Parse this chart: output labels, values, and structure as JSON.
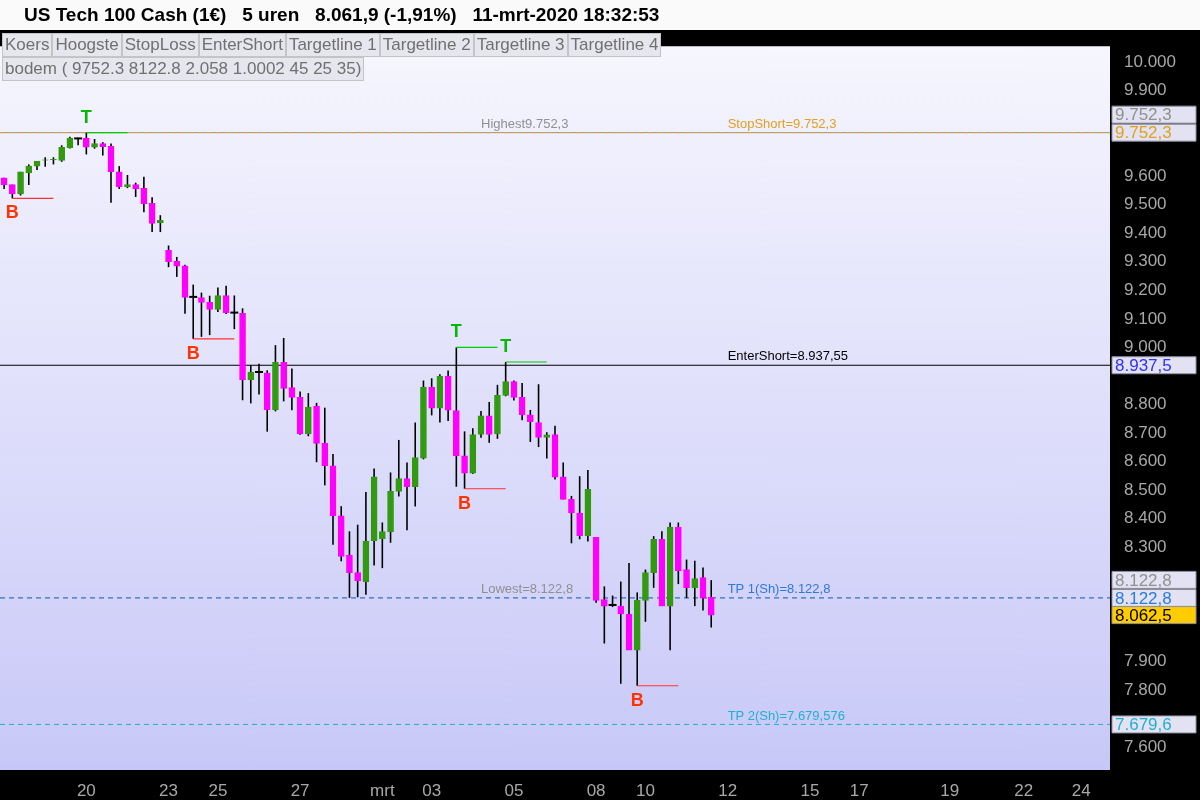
{
  "chart_data": {
    "type": "candlestick",
    "title": "US Tech 100 Cash (1€)   5 uren   8.061,9 (-1,91%)   11-mrt-2020 18:32:53",
    "categories": [
      null,
      null,
      null,
      null,
      null,
      null,
      null,
      null,
      null,
      null,
      "20",
      null,
      null,
      null,
      null,
      null,
      null,
      null,
      null,
      null,
      "23",
      null,
      null,
      null,
      null,
      null,
      "25",
      null,
      null,
      null,
      null,
      null,
      null,
      null,
      null,
      null,
      "27",
      null,
      null,
      null,
      null,
      null,
      null,
      null,
      null,
      null,
      "mrt",
      null,
      null,
      null,
      null,
      null,
      "03",
      null,
      null,
      null,
      null,
      null,
      null,
      null,
      null,
      null,
      "05",
      null,
      null,
      null,
      null,
      null,
      null,
      null,
      null,
      null,
      "08",
      null,
      null,
      null,
      null,
      null,
      "10",
      null,
      null,
      null,
      null,
      null,
      null,
      null,
      null,
      null,
      "12",
      null,
      null,
      null,
      null,
      null,
      null,
      null,
      null,
      null,
      "15",
      null,
      null,
      null,
      null,
      null,
      "17",
      null,
      null,
      null,
      null,
      null,
      null,
      null,
      null,
      null,
      null,
      "19",
      null,
      null,
      null,
      null,
      null,
      null,
      null,
      null,
      "22",
      null,
      null,
      null,
      null,
      null,
      null,
      "24",
      null,
      null,
      null
    ],
    "ohlc": [
      [
        9594,
        9594,
        9555,
        9569
      ],
      [
        9570,
        9570,
        9522,
        9538
      ],
      [
        9538,
        9615,
        9532,
        9615
      ],
      [
        9611,
        9641,
        9569,
        9635
      ],
      [
        9635,
        9653,
        9621,
        9653
      ],
      [
        9656,
        9666,
        9633,
        9657
      ],
      [
        9658,
        9666,
        9641,
        9659
      ],
      [
        9655,
        9708,
        9650,
        9701
      ],
      [
        9700,
        9738,
        9697,
        9733
      ],
      [
        9732,
        9734,
        9708,
        9732
      ],
      [
        9733,
        9752.3,
        9676,
        9701
      ],
      [
        9701,
        9730,
        9696,
        9714
      ],
      [
        9714,
        9719,
        9672,
        9703
      ],
      [
        9704,
        9714,
        9507,
        9615
      ],
      [
        9615,
        9635,
        9555,
        9563
      ],
      [
        9563,
        9604,
        9558,
        9570
      ],
      [
        9570,
        9577,
        9527,
        9555
      ],
      [
        9557,
        9598,
        9473,
        9503
      ],
      [
        9505,
        9526,
        9404,
        9434
      ],
      [
        9436,
        9463,
        9404,
        9445
      ],
      [
        9340,
        9357,
        9281,
        9300
      ],
      [
        9302,
        9317,
        9247,
        9285
      ],
      [
        9286,
        9290,
        9118,
        9175
      ],
      [
        9177,
        9220,
        9030,
        9177
      ],
      [
        9175,
        9192,
        9037,
        9158
      ],
      [
        9158,
        9181,
        9043,
        9133
      ],
      [
        9133,
        9210,
        9124,
        9182
      ],
      [
        9182,
        9216,
        9117,
        9122
      ],
      [
        9122,
        9182,
        9064,
        9122
      ],
      [
        9119,
        9137,
        8815,
        8886
      ],
      [
        8886,
        8938,
        8804,
        8914
      ],
      [
        8914,
        8943,
        8835,
        8914
      ],
      [
        8911,
        8920,
        8705,
        8781
      ],
      [
        8781,
        9008,
        8776,
        8948
      ],
      [
        8948,
        9033,
        8811,
        8856
      ],
      [
        8859,
        8926,
        8780,
        8825
      ],
      [
        8825,
        8846,
        8694,
        8697
      ],
      [
        8697,
        8840,
        8689,
        8791
      ],
      [
        8795,
        8806,
        8598,
        8664
      ],
      [
        8664,
        8789,
        8517,
        8585
      ],
      [
        8585,
        8627,
        8309,
        8410
      ],
      [
        8410,
        8444,
        8251,
        8268
      ],
      [
        8273,
        8356,
        8122.8,
        8211
      ],
      [
        8211,
        8379,
        8125,
        8182
      ],
      [
        8180,
        8494,
        8134,
        8322
      ],
      [
        8323,
        8576,
        8236,
        8547
      ],
      [
        8330,
        8387,
        8227,
        8355
      ],
      [
        8354,
        8562,
        8316,
        8496
      ],
      [
        8496,
        8676,
        8478,
        8541
      ],
      [
        8541,
        8597,
        8360,
        8512
      ],
      [
        8512,
        8737,
        8443,
        8614
      ],
      [
        8612,
        8884,
        8608,
        8861
      ],
      [
        8861,
        8892,
        8762,
        8787
      ],
      [
        8787,
        8906,
        8737,
        8899
      ],
      [
        8899,
        8919,
        8742,
        8780
      ],
      [
        8779,
        9000,
        8512,
        8620
      ],
      [
        8620,
        8706,
        8505,
        8560
      ],
      [
        8560,
        8717,
        8557,
        8695
      ],
      [
        8695,
        8777,
        8684,
        8760
      ],
      [
        8760,
        8809,
        8666,
        8695
      ],
      [
        8697,
        8869,
        8680,
        8832
      ],
      [
        8832,
        8949,
        8829,
        8880
      ],
      [
        8880,
        8884,
        8814,
        8825
      ],
      [
        8825,
        8875,
        8745,
        8764
      ],
      [
        8764,
        8781,
        8669,
        8740
      ],
      [
        8737,
        8871,
        8651,
        8685
      ],
      [
        8685,
        8703,
        8611,
        8694
      ],
      [
        8695,
        8726,
        8537,
        8546
      ],
      [
        8547,
        8597,
        8468,
        8468
      ],
      [
        8468,
        8480,
        8314,
        8420
      ],
      [
        8420,
        8549,
        8328,
        8341
      ],
      [
        8341,
        8571,
        8320,
        8503
      ],
      [
        8335,
        8335,
        8106,
        8114
      ],
      [
        8117,
        8163,
        7963,
        8094
      ],
      [
        8098,
        8131,
        8091,
        8098
      ],
      [
        8094,
        8180,
        7822,
        8067
      ],
      [
        8065,
        8245,
        7940,
        7940
      ],
      [
        7940,
        8142,
        7815,
        8114
      ],
      [
        8114,
        8222,
        8039,
        8211
      ],
      [
        8211,
        8339,
        8158,
        8328
      ],
      [
        8328,
        8356,
        8094,
        8094
      ],
      [
        8094,
        8387,
        7939,
        8371
      ],
      [
        8371,
        8387,
        8171,
        8217
      ],
      [
        8222,
        8257,
        8122,
        8159
      ],
      [
        8159,
        8253,
        8094,
        8190
      ],
      [
        8194,
        8229,
        8079,
        8122
      ],
      [
        8125,
        8185,
        8019,
        8062.5
      ],
      null,
      null,
      null,
      null,
      null,
      null,
      null,
      null,
      null,
      null,
      null,
      null,
      null,
      null,
      null,
      null,
      null,
      null,
      null,
      null,
      null,
      null,
      null,
      null,
      null,
      null,
      null,
      null,
      null,
      null,
      null,
      null,
      null,
      null,
      null,
      null,
      null,
      null,
      null,
      null,
      null,
      null,
      null,
      null,
      null,
      null,
      null,
      null
    ],
    "colors": [
      "#ff00ff",
      "#ff00ff",
      "#339911",
      "#339911",
      "#339911",
      "#339911",
      "#339911",
      "#339911",
      "#339911",
      "#339911",
      "#ff00ff",
      "#339911",
      "#ff00ff",
      "#ff00ff",
      "#ff00ff",
      "#339911",
      "#ff00ff",
      "#ff00ff",
      "#ff00ff",
      "#339911",
      "#ff00ff",
      "#ff00ff",
      "#ff00ff",
      "#339911",
      "#ff00ff",
      "#ff00ff",
      "#339911",
      "#ff00ff",
      "#339911",
      "#ff00ff",
      "#339911",
      "#339911",
      "#ff00ff",
      "#339911",
      "#ff00ff",
      "#ff00ff",
      "#ff00ff",
      "#339911",
      "#ff00ff",
      "#ff00ff",
      "#ff00ff",
      "#ff00ff",
      "#ff00ff",
      "#ff00ff",
      "#339911",
      "#339911",
      "#339911",
      "#339911",
      "#339911",
      "#ff00ff",
      "#339911",
      "#339911",
      "#ff00ff",
      "#339911",
      "#ff00ff",
      "#ff00ff",
      "#ff00ff",
      "#339911",
      "#339911",
      "#ff00ff",
      "#339911",
      "#339911",
      "#ff00ff",
      "#ff00ff",
      "#ff00ff",
      "#ff00ff",
      "#339911",
      "#ff00ff",
      "#ff00ff",
      "#ff00ff",
      "#ff00ff",
      "#339911",
      "#ff00ff",
      "#ff00ff",
      "#339911",
      "#ff00ff",
      "#ff00ff",
      "#339911",
      "#339911",
      "#339911",
      "#ff00ff",
      "#339911",
      "#ff00ff",
      "#ff00ff",
      "#339911",
      "#ff00ff",
      "#ff00ff",
      null,
      null,
      null,
      null,
      null,
      null,
      null,
      null,
      null,
      null,
      null,
      null,
      null,
      null,
      null,
      null,
      null,
      null,
      null,
      null,
      null,
      null,
      null,
      null,
      null,
      null,
      null,
      null,
      null,
      null,
      null,
      null,
      null,
      null,
      null,
      null,
      null,
      null,
      null,
      null,
      null,
      null,
      null,
      null,
      null,
      null,
      null,
      null
    ],
    "value_labels": [
      null,
      "B",
      null,
      null,
      null,
      null,
      null,
      null,
      null,
      null,
      "T",
      null,
      null,
      null,
      null,
      null,
      null,
      null,
      null,
      null,
      null,
      null,
      null,
      "B",
      null,
      null,
      null,
      null,
      null,
      null,
      null,
      null,
      null,
      null,
      null,
      null,
      null,
      null,
      null,
      null,
      null,
      null,
      null,
      null,
      null,
      null,
      null,
      null,
      null,
      null,
      null,
      null,
      null,
      null,
      null,
      "T",
      "B",
      null,
      null,
      null,
      null,
      "T",
      null,
      null,
      null,
      null,
      null,
      null,
      null,
      null,
      null,
      null,
      null,
      null,
      null,
      null,
      null,
      "B",
      null,
      null,
      null,
      null,
      null,
      null,
      null,
      null,
      null,
      null,
      null,
      null,
      null,
      null,
      null,
      null,
      null,
      null,
      null,
      null,
      null,
      null,
      null,
      null,
      null,
      null,
      null,
      null,
      null,
      null,
      null,
      null,
      null,
      null,
      null,
      null,
      null,
      null,
      null,
      null,
      null,
      null,
      null,
      null,
      null,
      null,
      null,
      null,
      null,
      null,
      null,
      null,
      null,
      null,
      null,
      null,
      null
    ],
    "ylim": [
      7520,
      10055
    ],
    "yticks": [
      {
        "value": 9752.3,
        "label": "9.752,3"
      },
      {
        "value": 8937.55,
        "label": "8.937,5"
      },
      {
        "value": 8122.8,
        "label": "8.122,8"
      },
      {
        "value": 8062.5,
        "label": "8.062,5"
      },
      {
        "value": 7679.576,
        "label": "7.679,6"
      },
      {
        "value": 7600,
        "label": "7.600"
      },
      {
        "value": 7800,
        "label": "7.800"
      },
      {
        "value": 7900,
        "label": "7.900"
      },
      {
        "value": 8300,
        "label": "8.300"
      },
      {
        "value": 8400,
        "label": "8.400"
      },
      {
        "value": 8500,
        "label": "8.500"
      },
      {
        "value": 8600,
        "label": "8.600"
      },
      {
        "value": 8700,
        "label": "8.700"
      },
      {
        "value": 8800,
        "label": "8.800"
      },
      {
        "value": 9000,
        "label": "9.000"
      },
      {
        "value": 9100,
        "label": "9.100"
      },
      {
        "value": 9200,
        "label": "9.200"
      },
      {
        "value": 9300,
        "label": "9.300"
      },
      {
        "value": 9400,
        "label": "9.400"
      },
      {
        "value": 9500,
        "label": "9.500"
      },
      {
        "value": 9600,
        "label": "9.600"
      },
      {
        "value": 9900,
        "label": "9.900"
      },
      {
        "value": 10000,
        "label": "10.000"
      }
    ],
    "ref_lines": [
      {
        "axis": "y",
        "value": 9752.3,
        "label": "Highest9.752,3",
        "color": "#909090",
        "line_style": "solid"
      },
      {
        "axis": "y",
        "value": 9752.3,
        "label": "StopShort=9.752,3",
        "color": "#e0a020",
        "line_style": "dashed"
      },
      {
        "axis": "y",
        "value": 8937.55,
        "label": "EnterShort=8.937,55",
        "color": "#000000",
        "line_style": "solid"
      },
      {
        "axis": "y",
        "value": 8122.8,
        "label": "Lowest=8.122,8",
        "color": "#909090",
        "line_style": "dashed"
      },
      {
        "axis": "y",
        "value": 8122.8,
        "label": "TP 1(Sh)=8.122,8",
        "color": "#2a7ae0",
        "line_style": "dashed"
      },
      {
        "axis": "y",
        "value": 7679.576,
        "label": "TP 2(Sh)=7.679,576",
        "color": "#20b0d0",
        "line_style": "dashed"
      }
    ],
    "annotations": [
      "Koers",
      "Hoogste",
      "StopLoss",
      "EnterShort",
      "Targetline 1",
      "Targetline 2",
      "Targetline 3",
      "Targetline 4",
      "bodem ( 9752.3 8122.8 2.058 1.0002 45 25 35)"
    ],
    "legend": false,
    "grid": false
  }
}
